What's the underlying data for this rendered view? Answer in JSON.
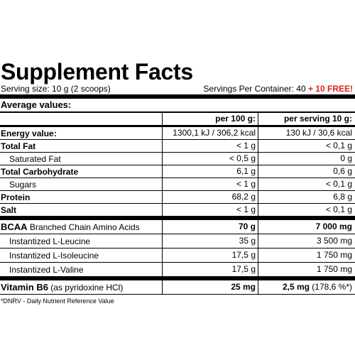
{
  "title": "Supplement Facts",
  "serving_size": "Serving size: 10 g (2 scoops)",
  "servings_per_container": "Servings Per Container: 40",
  "free_bonus": "+ 10 FREE!",
  "average_values": "Average values:",
  "col_headers": {
    "per100": "per 100 g:",
    "perServing": "per serving 10 g:"
  },
  "rows": {
    "energy": {
      "label": "Energy value:",
      "per100": "1300,1 kJ / 306,2 kcal",
      "perServing": "130 kJ / 30,6 kcal"
    },
    "total_fat": {
      "label": "Total Fat",
      "per100": "< 1 g",
      "perServing": "< 0,1 g"
    },
    "saturated_fat": {
      "label": "Saturated Fat",
      "per100": "< 0,5 g",
      "perServing": "0 g"
    },
    "total_carb": {
      "label": "Total Carbohydrate",
      "per100": "6,1 g",
      "perServing": "0,6 g"
    },
    "sugars": {
      "label": "Sugars",
      "per100": "< 1 g",
      "perServing": "< 0,1 g"
    },
    "protein": {
      "label": "Protein",
      "per100": "68,2 g",
      "perServing": "6,8 g"
    },
    "salt": {
      "label": "Salt",
      "per100": "< 1 g",
      "perServing": "< 0,1 g"
    },
    "bcaa": {
      "label": "BCAA",
      "sub": "Branched Chain Amino Acids",
      "per100": "70 g",
      "perServing": "7 000 mg"
    },
    "leucine": {
      "label": "Instantized L-Leucine",
      "per100": "35 g",
      "perServing": "3 500 mg"
    },
    "isoleucine": {
      "label": "Instantized L-Isoleucine",
      "per100": "17,5 g",
      "perServing": "1 750 mg"
    },
    "valine": {
      "label": "Instantized L-Valine",
      "per100": "17,5 g",
      "perServing": "1 750 mg"
    },
    "vitb6": {
      "label": "Vitamin B6",
      "sub": "(as pyridoxine HCl)",
      "per100": "25 mg",
      "perServing": "2,5 mg",
      "perServingDrv": "(178,6 %*)"
    }
  },
  "footnote": "*DNRV - Daily Nutrient Reference Value"
}
